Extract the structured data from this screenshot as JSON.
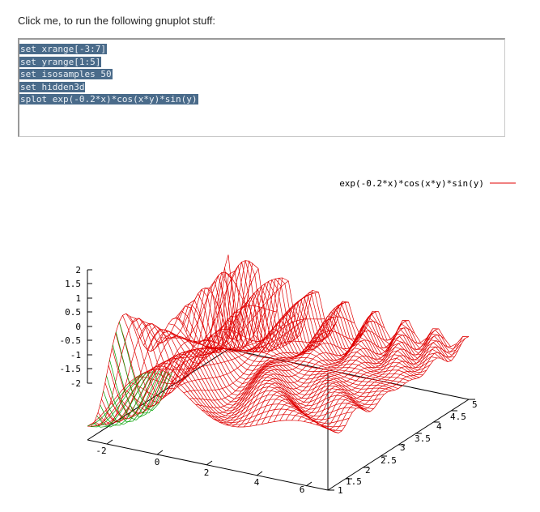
{
  "intro": {
    "text": "Click me, to run the following gnuplot stuff:"
  },
  "code": {
    "lines": [
      "set xrange[-3:7]",
      "set yrange[1:5]",
      "set isosamples 50",
      "set hidden3d",
      "splot exp(-0.2*x)*cos(x*y)*sin(y)"
    ]
  },
  "plot": {
    "legend": "exp(-0.2*x)*cos(x*y)*sin(y)",
    "colors": {
      "surface_top": "#e00000",
      "surface_bottom": "#00a000",
      "axes": "#000000",
      "code_highlight": "#4a6b8a"
    },
    "z_ticks": [
      "2",
      "1.5",
      "1",
      "0.5",
      "0",
      "-0.5",
      "-1",
      "-1.5",
      "-2"
    ],
    "x_ticks": [
      "-2",
      "0",
      "2",
      "4",
      "6"
    ],
    "y_ticks": [
      "1",
      "1.5",
      "2",
      "2.5",
      "3",
      "3.5",
      "4",
      "4.5",
      "5"
    ]
  }
}
